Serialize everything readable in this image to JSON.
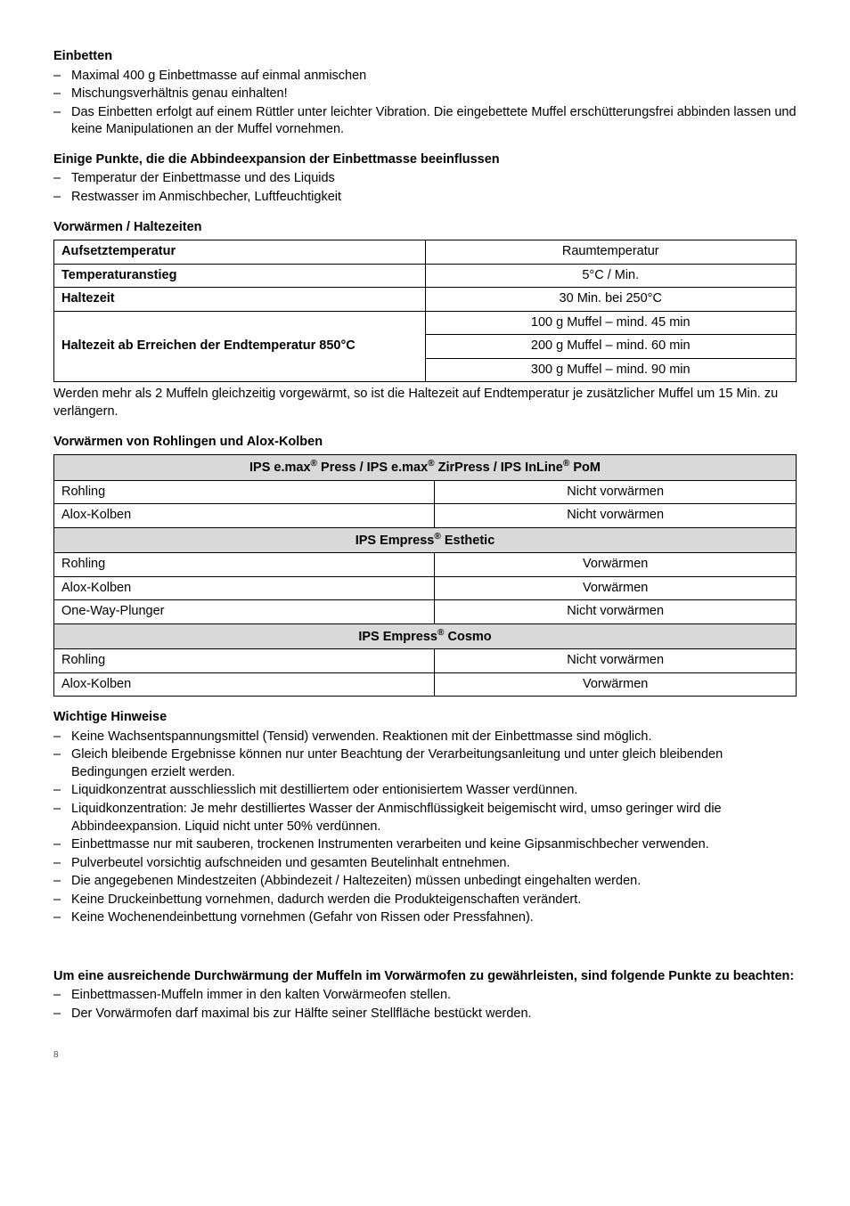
{
  "s1": {
    "title": "Einbetten",
    "items": [
      "Maximal 400 g Einbettmasse auf einmal anmischen",
      "Mischungsverhältnis genau einhalten!",
      "Das Einbetten erfolgt auf einem Rüttler unter leichter Vibration. Die eingebettete Muffel erschütterungsfrei abbinden lassen und keine Manipulationen an der Muffel vornehmen."
    ]
  },
  "s2": {
    "title": "Einige Punkte, die die Abbindeexpansion der Einbettmasse beeinflussen",
    "items": [
      "Temperatur der Einbettmasse und des Liquids",
      "Restwasser im Anmischbecher, Luftfeuchtigkeit"
    ]
  },
  "s3": {
    "title": "Vorwärmen / Haltezeiten"
  },
  "t1": {
    "r1l": "Aufsetztemperatur",
    "r1v": "Raumtemperatur",
    "r2l": "Temperaturanstieg",
    "r2v": "5°C / Min.",
    "r3l": "Haltezeit",
    "r3v": "30 Min. bei 250°C",
    "r4l": "Haltezeit ab Erreichen der Endtemperatur 850°C",
    "r4v1": "100 g Muffel – mind. 45 min",
    "r4v2": "200 g Muffel – mind. 60 min",
    "r4v3": "300 g Muffel – mind. 90 min"
  },
  "p1": "Werden mehr als 2 Muffeln  gleichzeitig vorgewärmt, so ist die Haltezeit auf Endtemperatur  je zusätzlicher Muffel um 15 Min. zu verlängern.",
  "s4": {
    "title": "Vorwärmen von Rohlingen und Alox-Kolben"
  },
  "t2": {
    "h1": "IPS e.max® Press / IPS e.max® ZirPress / IPS InLine® PoM",
    "r1l": "Rohling",
    "r1v": "Nicht vorwärmen",
    "r2l": "Alox-Kolben",
    "r2v": "Nicht vorwärmen",
    "h2": "IPS Empress® Esthetic",
    "r3l": "Rohling",
    "r3v": "Vorwärmen",
    "r4l": "Alox-Kolben",
    "r4v": "Vorwärmen",
    "r5l": "One-Way-Plunger",
    "r5v": "Nicht vorwärmen",
    "h3": "IPS Empress® Cosmo",
    "r6l": "Rohling",
    "r6v": "Nicht vorwärmen",
    "r7l": "Alox-Kolben",
    "r7v": "Vorwärmen"
  },
  "s5": {
    "title": "Wichtige Hinweise",
    "items": [
      "Keine Wachsentspannungsmittel (Tensid) verwenden. Reaktionen mit der Einbettmasse sind möglich.",
      "Gleich bleibende Ergebnisse können nur unter Beachtung der Verarbeitungsanleitung und unter gleich bleibenden Bedingungen erzielt werden.",
      "Liquidkonzentrat ausschliesslich mit destilliertem oder entionisiertem Wasser verdünnen.",
      "Liquidkonzentration: Je mehr destilliertes Wasser der Anmischflüssigkeit beigemischt wird, umso geringer wird die Abbindeexpansion. Liquid nicht unter 50% verdünnen.",
      "Einbettmasse nur mit sauberen, trockenen Instrumenten verarbeiten und keine Gipsanmischbecher verwenden.",
      "Pulverbeutel vorsichtig aufschneiden und gesamten Beutelinhalt entnehmen.",
      "Die angegebenen Mindestzeiten (Abbindezeit / Haltezeiten) müssen unbedingt eingehalten werden.",
      "Keine Druckeinbettung vornehmen, dadurch werden die Produkteigenschaften verändert.",
      "Keine Wochenendeinbettung vornehmen (Gefahr von Rissen oder Pressfahnen)."
    ]
  },
  "s6": {
    "title": "Um eine ausreichende Durchwärmung der Muffeln im Vorwärmofen zu gewährleisten, sind folgende Punkte zu beachten:",
    "items": [
      "Einbettmassen-Muffeln immer in den kalten Vorwärmeofen stellen.",
      "Der Vorwärmofen darf maximal bis zur Hälfte seiner Stellfläche bestückt werden."
    ]
  },
  "pagenum": "8"
}
